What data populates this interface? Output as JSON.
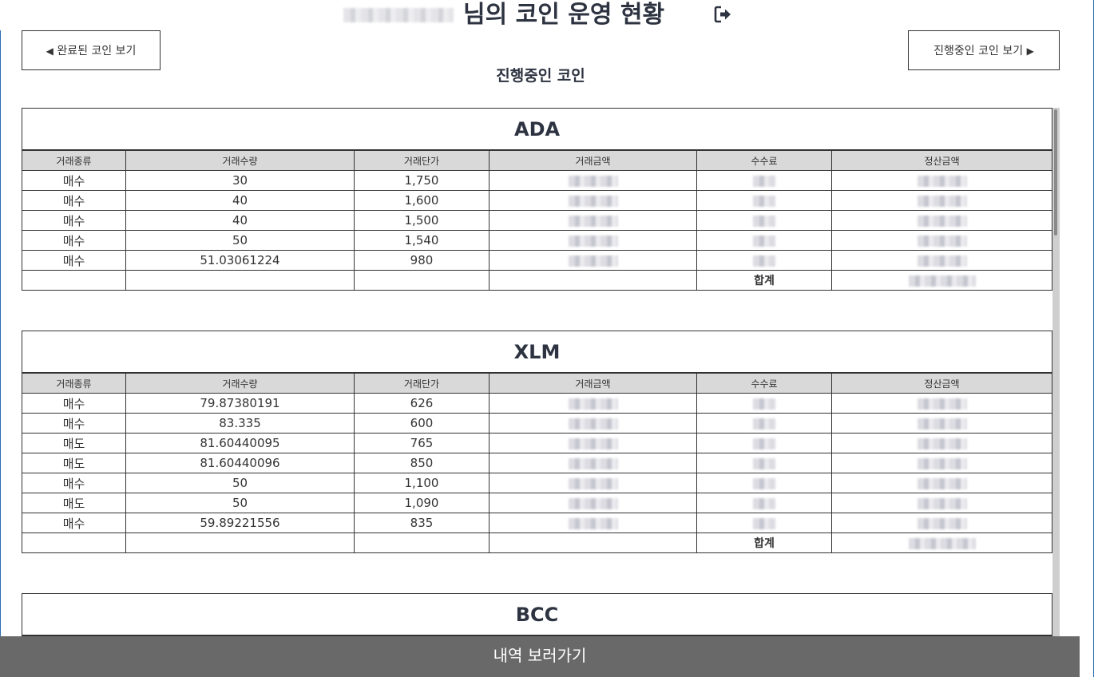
{
  "header": {
    "title_suffix": "님의 코인 운영 현황",
    "logout_icon": "sign-out-icon"
  },
  "nav": {
    "prev_label": "완료된 코인 보기",
    "next_label": "진행중인 코인 보기",
    "prev_arrow": "◀",
    "next_arrow": "▶"
  },
  "section_title": "진행중인 코인",
  "columns": [
    "거래종류",
    "거래수량",
    "거래단가",
    "거래금액",
    "수수료",
    "정산금액"
  ],
  "total_label": "합계",
  "coins": [
    {
      "name": "ADA",
      "rows": [
        {
          "type": "매수",
          "qty": "30",
          "price": "1,750"
        },
        {
          "type": "매수",
          "qty": "40",
          "price": "1,600"
        },
        {
          "type": "매수",
          "qty": "40",
          "price": "1,500"
        },
        {
          "type": "매수",
          "qty": "50",
          "price": "1,540"
        },
        {
          "type": "매수",
          "qty": "51.03061224",
          "price": "980"
        }
      ]
    },
    {
      "name": "XLM",
      "rows": [
        {
          "type": "매수",
          "qty": "79.87380191",
          "price": "626"
        },
        {
          "type": "매수",
          "qty": "83.335",
          "price": "600"
        },
        {
          "type": "매도",
          "qty": "81.60440095",
          "price": "765"
        },
        {
          "type": "매도",
          "qty": "81.60440096",
          "price": "850"
        },
        {
          "type": "매수",
          "qty": "50",
          "price": "1,100"
        },
        {
          "type": "매도",
          "qty": "50",
          "price": "1,090"
        },
        {
          "type": "매수",
          "qty": "59.89221556",
          "price": "835"
        }
      ]
    },
    {
      "name": "BCC",
      "rows": []
    }
  ],
  "footer": {
    "button_label": "내역 보러가기"
  }
}
